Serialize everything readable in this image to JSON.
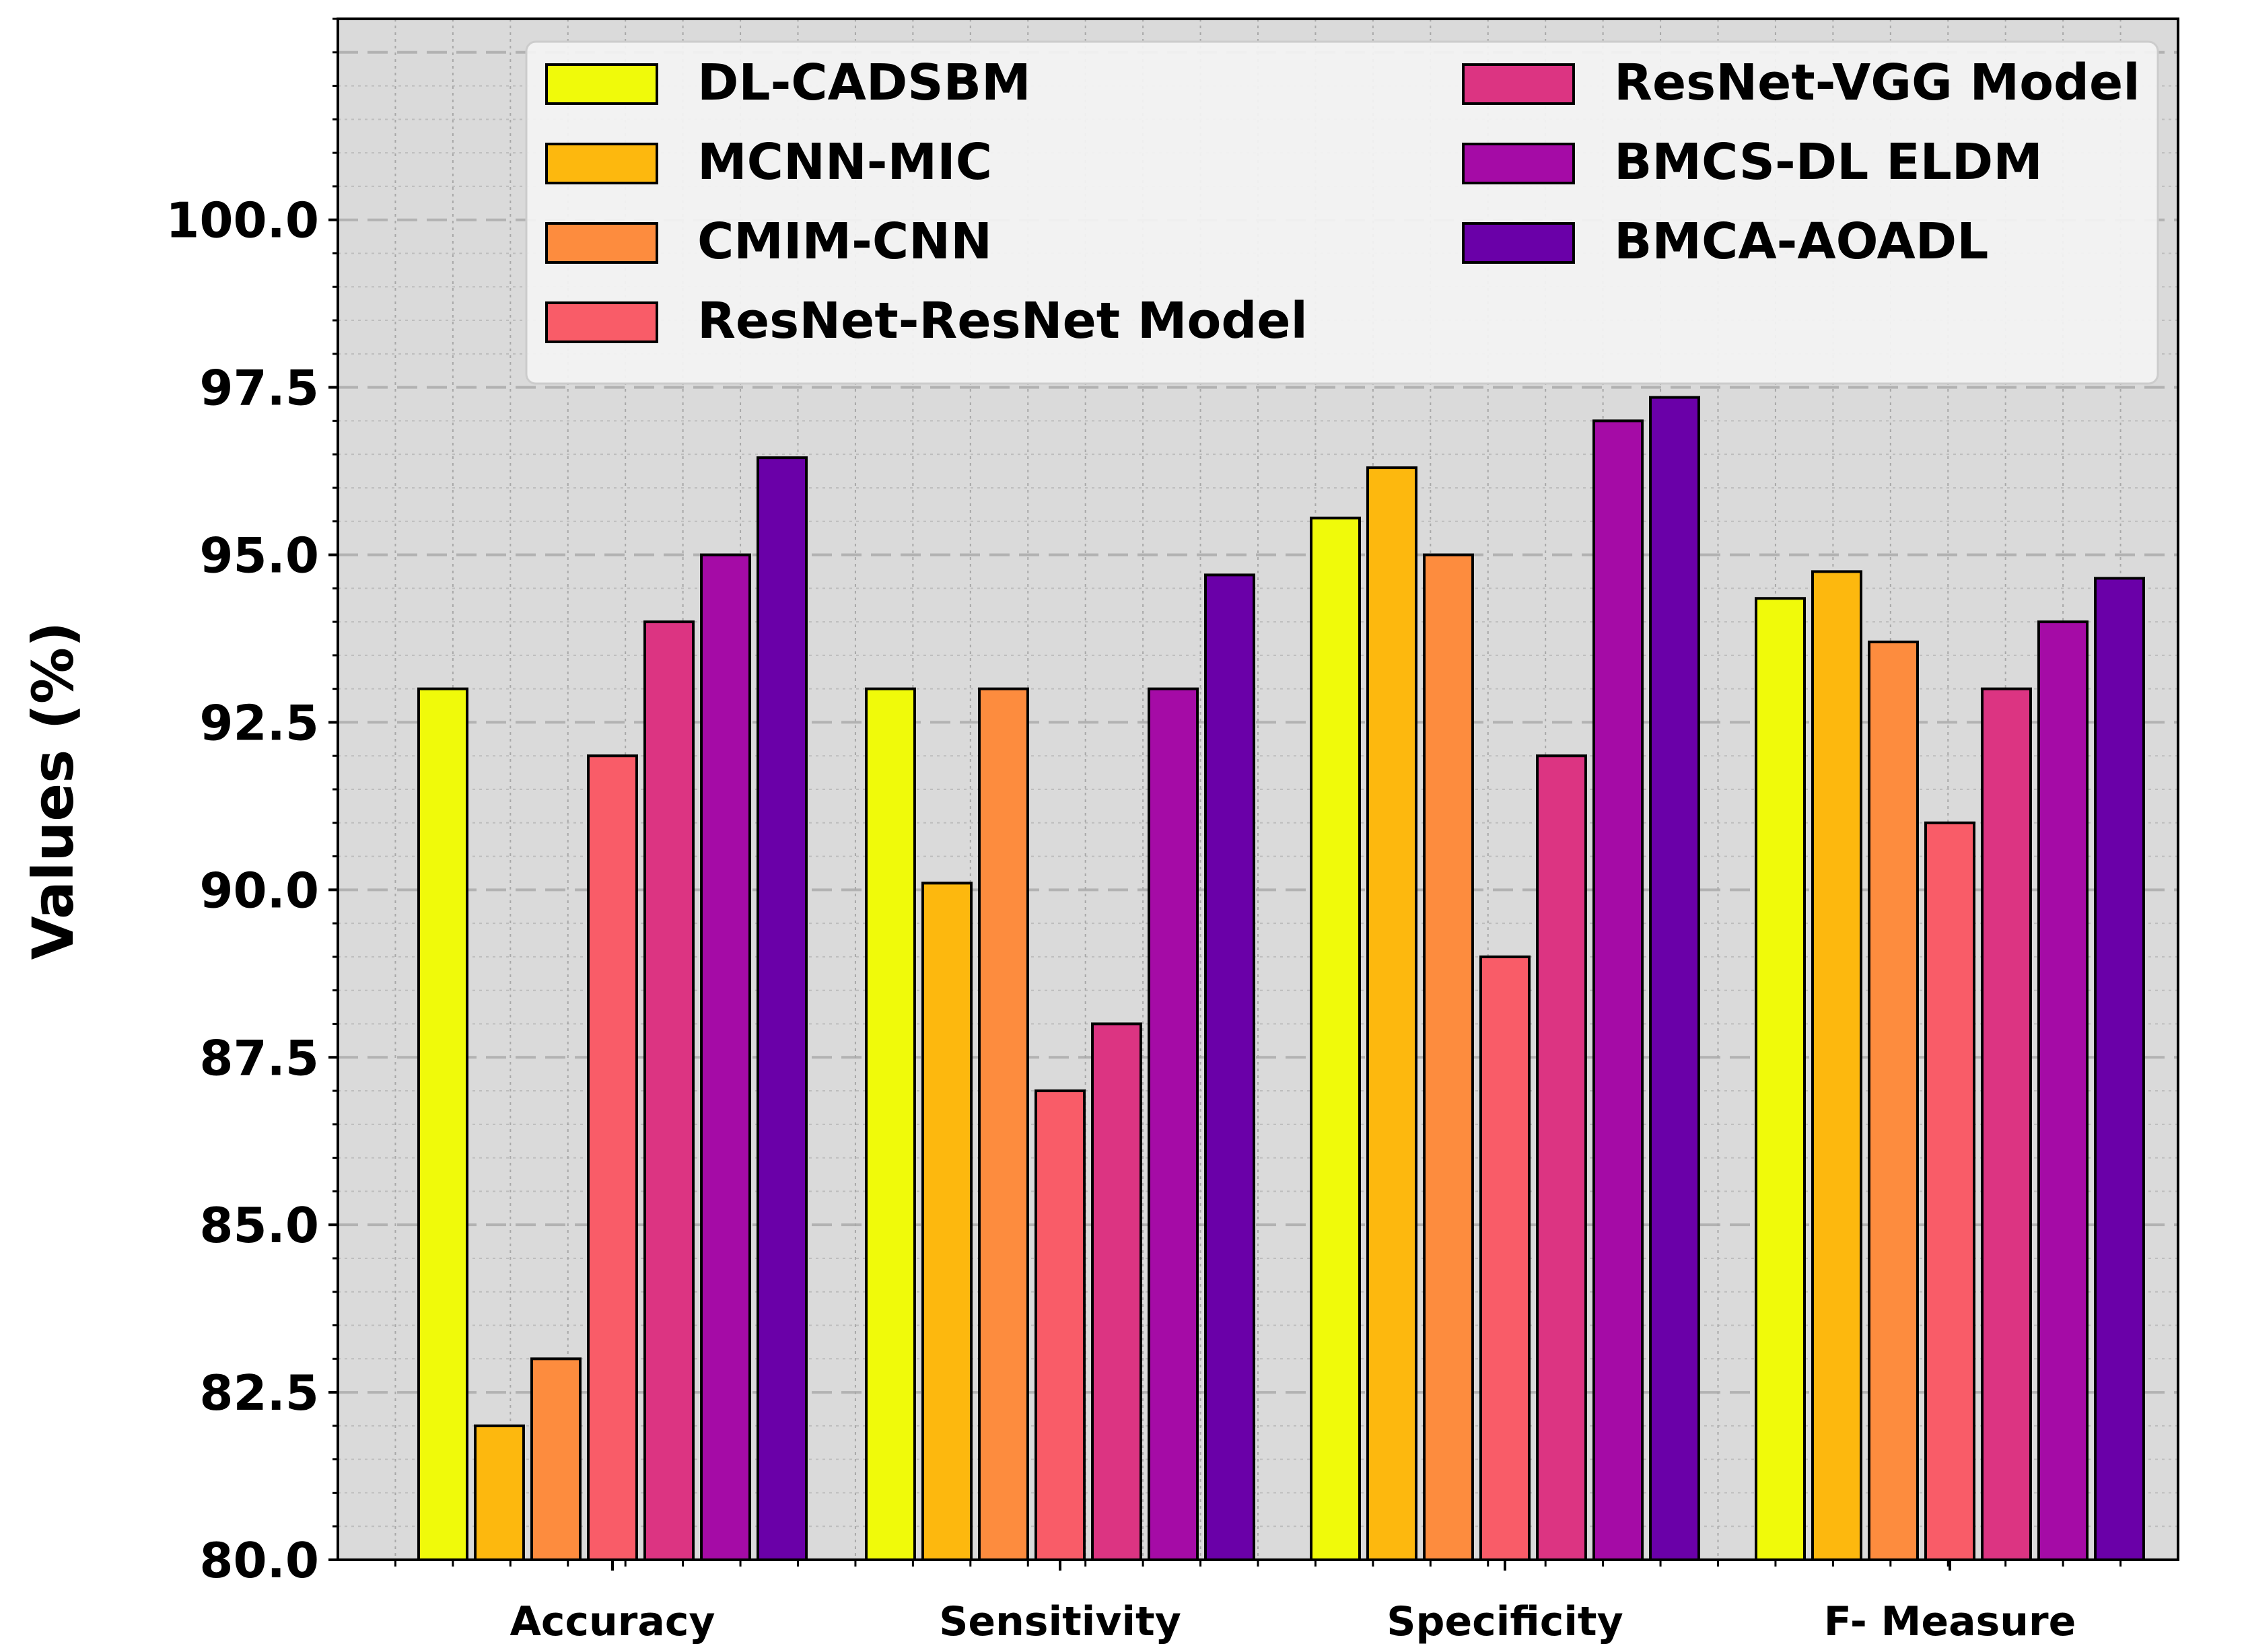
{
  "chart_data": {
    "type": "bar",
    "title": "",
    "xlabel": "",
    "ylabel": "Values (%)",
    "ylim": [
      80,
      103
    ],
    "yticks": [
      "80.0",
      "82.5",
      "85.0",
      "87.5",
      "90.0",
      "92.5",
      "95.0",
      "97.5",
      "100.0"
    ],
    "grid": true,
    "legend_position": "top",
    "categories": [
      "Accuracy",
      "Sensitivity",
      "Specificity",
      "F- Measure"
    ],
    "series": [
      {
        "name": "DL-CADSBM",
        "color": "#f0fa0a",
        "values": [
          93.0,
          93.0,
          95.55,
          94.35
        ]
      },
      {
        "name": "MCNN-MIC",
        "color": "#fdb80e",
        "values": [
          82.0,
          90.1,
          96.3,
          94.75
        ]
      },
      {
        "name": "CMIM-CNN",
        "color": "#fd8c3e",
        "values": [
          83.0,
          93.0,
          95.0,
          93.7
        ]
      },
      {
        "name": "ResNet-ResNet Model",
        "color": "#f95c68",
        "values": [
          92.0,
          87.0,
          89.0,
          91.0
        ]
      },
      {
        "name": "ResNet-VGG Model",
        "color": "#dc3482",
        "values": [
          94.0,
          88.0,
          92.0,
          93.0
        ]
      },
      {
        "name": "BMCS-DL ELDM",
        "color": "#a50ba6",
        "values": [
          95.0,
          93.0,
          97.0,
          94.0
        ]
      },
      {
        "name": "BMCA-AOADL",
        "color": "#6a00a8",
        "values": [
          96.45,
          94.7,
          97.35,
          94.65
        ]
      }
    ]
  }
}
